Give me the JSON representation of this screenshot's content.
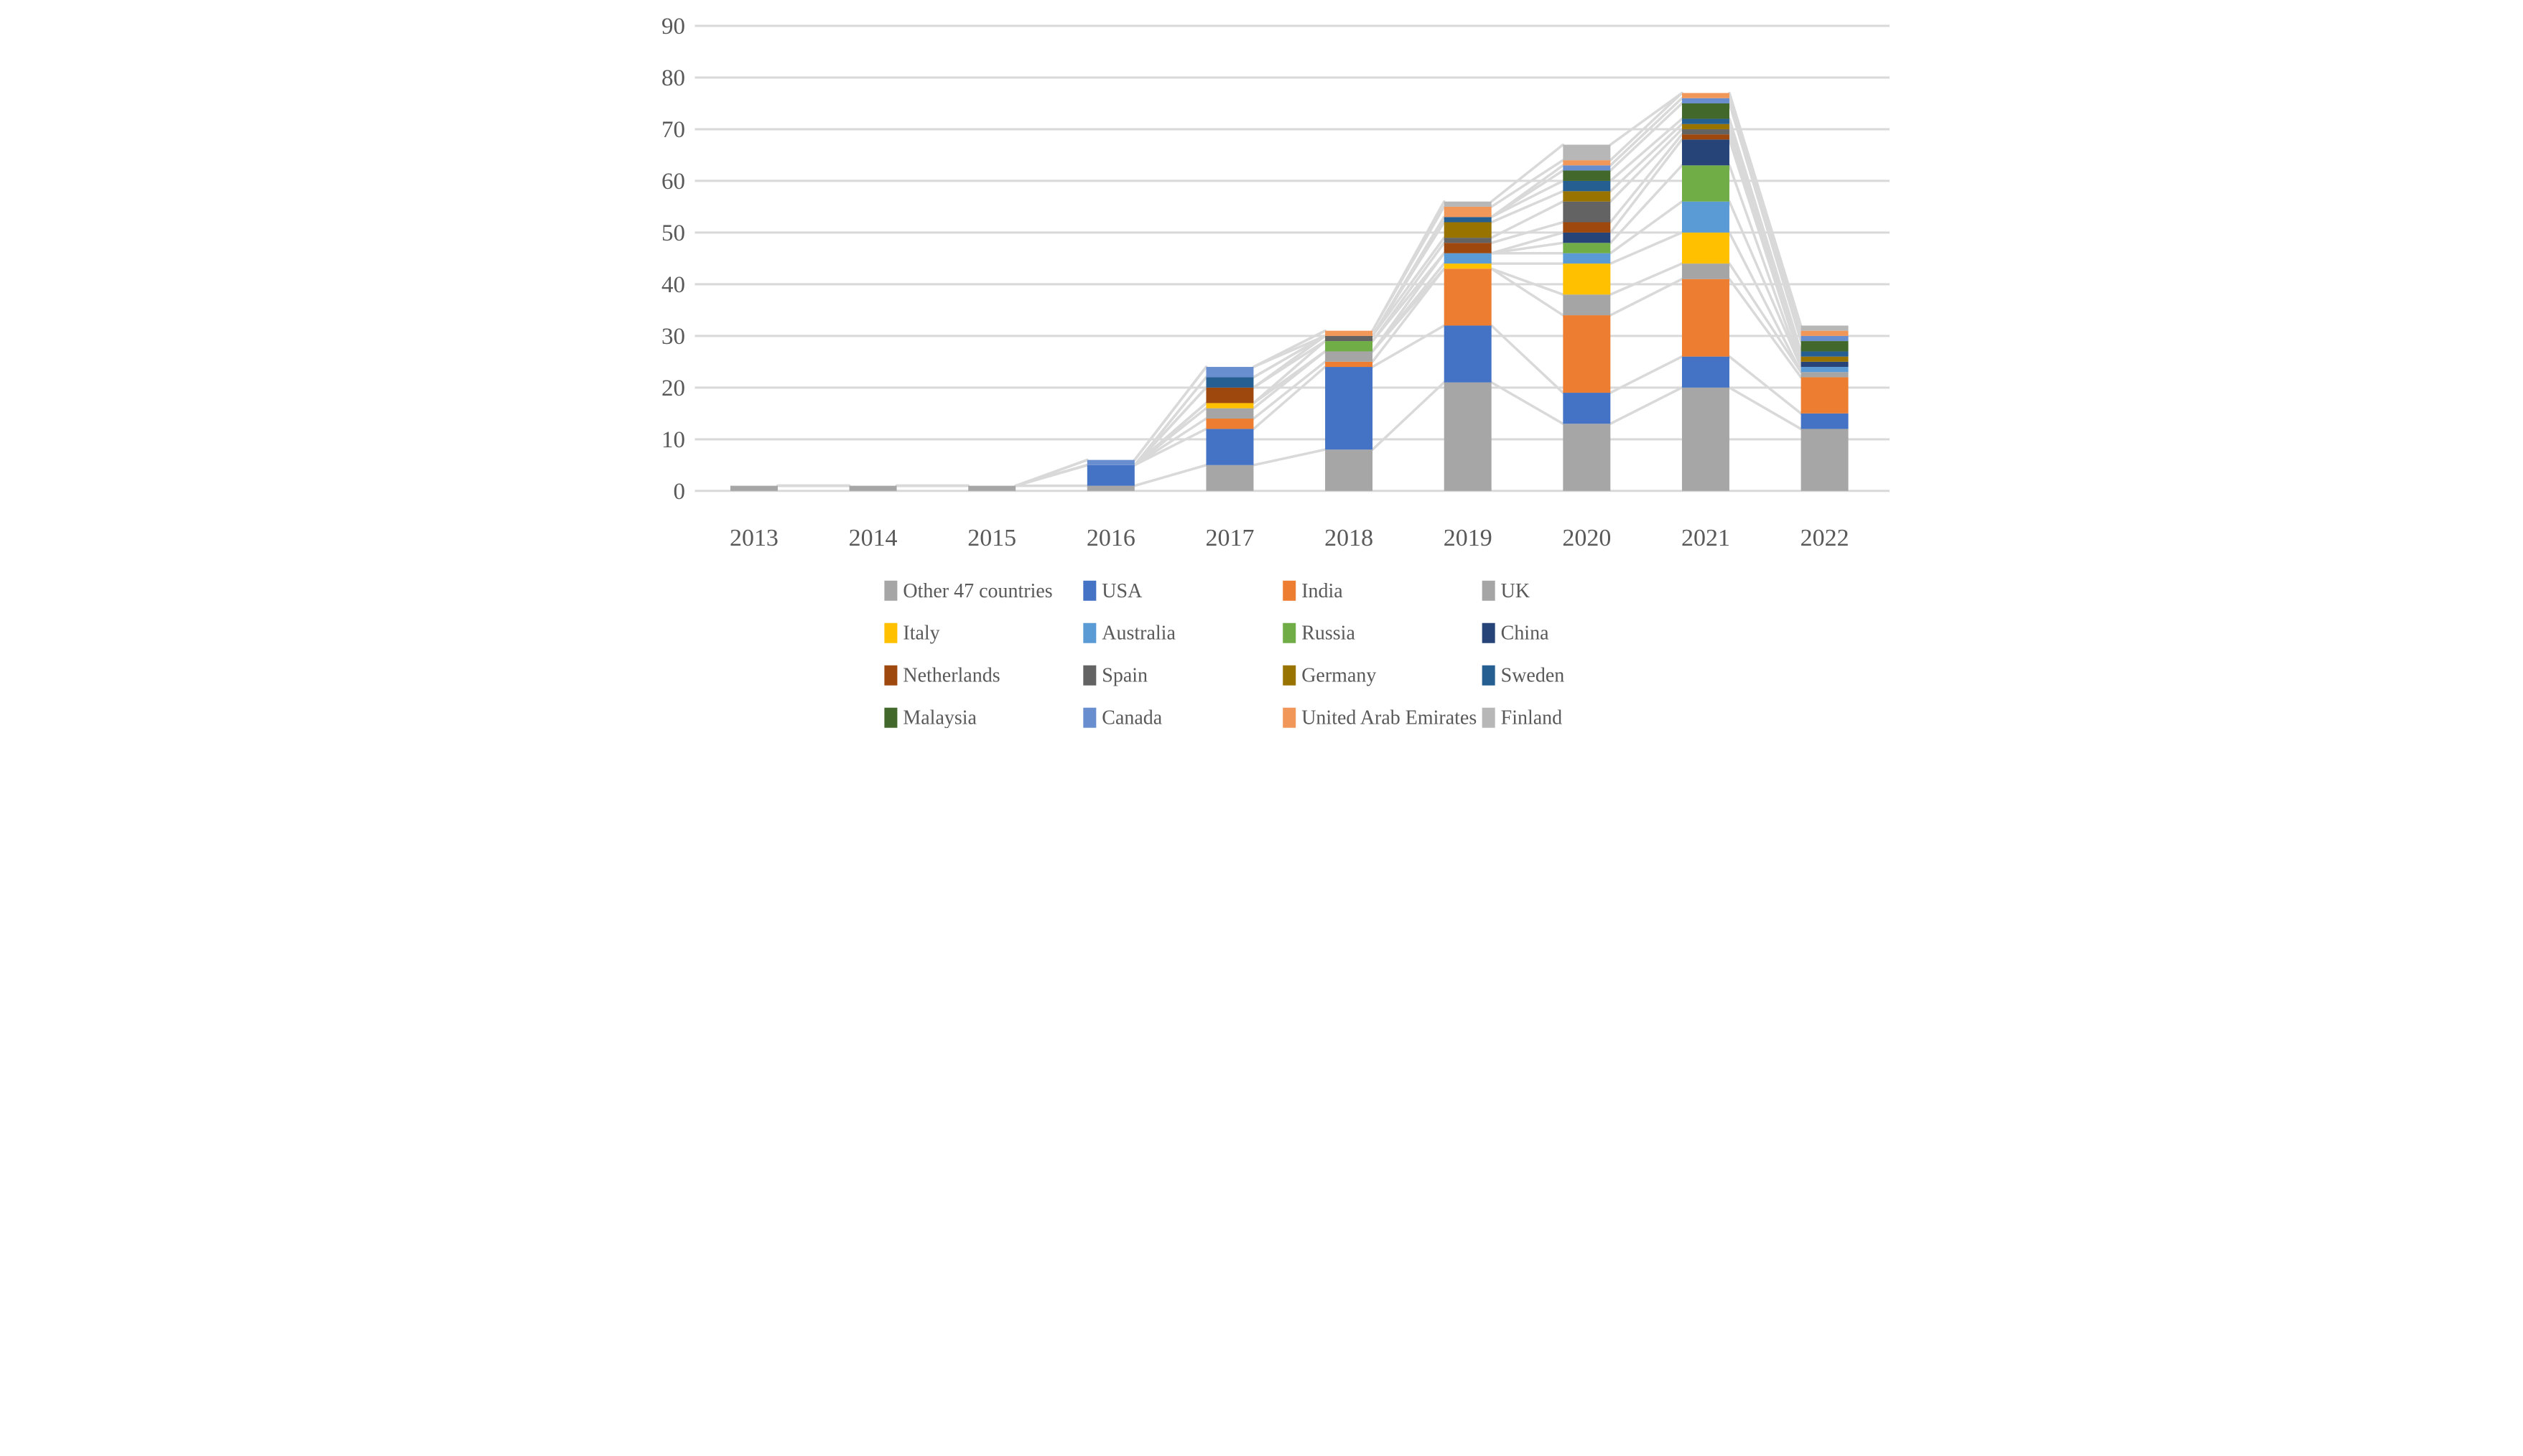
{
  "chart_data": {
    "type": "bar",
    "stacked": true,
    "title": "",
    "xlabel": "",
    "ylabel": "",
    "categories": [
      "2013",
      "2014",
      "2015",
      "2016",
      "2017",
      "2018",
      "2019",
      "2020",
      "2021",
      "2022"
    ],
    "series": [
      {
        "name": "Other 47 countries",
        "color": "#A6A6A6",
        "values": [
          1,
          1,
          1,
          1,
          5,
          8,
          21,
          13,
          20,
          12
        ]
      },
      {
        "name": "USA",
        "color": "#4472C4",
        "values": [
          0,
          0,
          0,
          4,
          7,
          16,
          11,
          6,
          6,
          3
        ]
      },
      {
        "name": "India",
        "color": "#ED7D31",
        "values": [
          0,
          0,
          0,
          0,
          2,
          1,
          11,
          15,
          15,
          7
        ]
      },
      {
        "name": "UK",
        "color": "#A5A5A5",
        "values": [
          0,
          0,
          0,
          0,
          2,
          2,
          0,
          4,
          3,
          1
        ]
      },
      {
        "name": "Italy",
        "color": "#FFC000",
        "values": [
          0,
          0,
          0,
          0,
          1,
          0,
          1,
          6,
          6,
          0
        ]
      },
      {
        "name": "Australia",
        "color": "#5B9BD5",
        "values": [
          0,
          0,
          0,
          0,
          0,
          0,
          2,
          2,
          6,
          1
        ]
      },
      {
        "name": "Russia",
        "color": "#70AD47",
        "values": [
          0,
          0,
          0,
          0,
          0,
          2,
          0,
          2,
          7,
          0
        ]
      },
      {
        "name": "China",
        "color": "#264478",
        "values": [
          0,
          0,
          0,
          0,
          0,
          0,
          0,
          2,
          5,
          1
        ]
      },
      {
        "name": "Netherlands",
        "color": "#9E480E",
        "values": [
          0,
          0,
          0,
          0,
          3,
          0,
          2,
          2,
          1,
          0
        ]
      },
      {
        "name": "Spain",
        "color": "#636363",
        "values": [
          0,
          0,
          0,
          0,
          0,
          1,
          1,
          4,
          1,
          0
        ]
      },
      {
        "name": "Germany",
        "color": "#997300",
        "values": [
          0,
          0,
          0,
          0,
          0,
          0,
          3,
          2,
          1,
          1
        ]
      },
      {
        "name": "Sweden",
        "color": "#255E91",
        "values": [
          0,
          0,
          0,
          0,
          2,
          0,
          1,
          2,
          1,
          1
        ]
      },
      {
        "name": "Malaysia",
        "color": "#43682B",
        "values": [
          0,
          0,
          0,
          0,
          0,
          0,
          0,
          2,
          3,
          2
        ]
      },
      {
        "name": "Canada",
        "color": "#698ED0",
        "values": [
          0,
          0,
          0,
          1,
          2,
          0,
          0,
          1,
          1,
          1
        ]
      },
      {
        "name": "United Arab Emirates",
        "color": "#F1975A",
        "values": [
          0,
          0,
          0,
          0,
          0,
          1,
          2,
          1,
          1,
          1
        ]
      },
      {
        "name": "Finland",
        "color": "#B7B7B7",
        "values": [
          0,
          0,
          0,
          0,
          0,
          0,
          1,
          3,
          0,
          1
        ]
      }
    ],
    "y_axis": {
      "min": 0,
      "max": 90,
      "step": 10,
      "tick_labels": [
        "0",
        "10",
        "20",
        "30",
        "40",
        "50",
        "60",
        "70",
        "80",
        "90"
      ]
    },
    "ylim": [
      0,
      90
    ],
    "grid": true,
    "has_series_lines": true,
    "legend_position": "bottom",
    "legend_columns": 4,
    "colors": {
      "gridline": "#D9D9D9",
      "series_line": "#D9D9D9",
      "axis_text": "#595959",
      "background": "#FFFFFF"
    }
  }
}
